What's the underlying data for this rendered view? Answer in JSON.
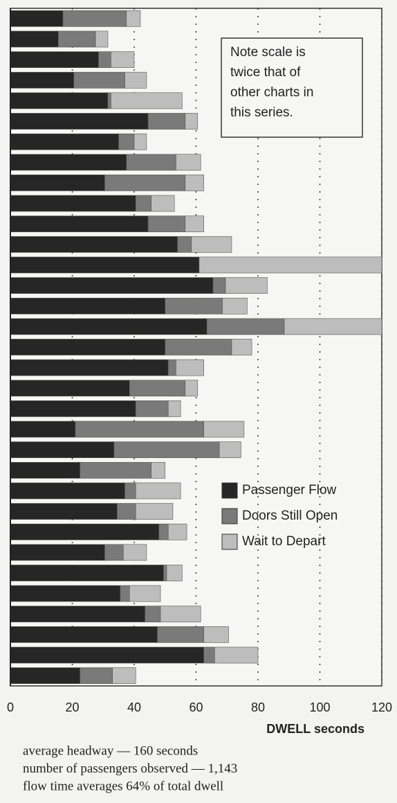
{
  "chart_data": {
    "type": "bar",
    "orientation": "horizontal",
    "stacked": true,
    "categories": [
      null,
      null,
      null,
      null,
      null,
      null,
      null,
      null,
      null,
      null,
      null,
      null,
      null,
      null,
      null,
      null,
      null,
      null,
      null,
      null,
      null,
      null,
      null,
      null,
      null,
      null,
      null,
      null,
      null,
      null,
      null,
      null,
      null
    ],
    "series": [
      {
        "name": "Passenger Flow",
        "color": "#262626",
        "values": [
          17,
          15.5,
          28.5,
          20.5,
          31.5,
          44.5,
          35,
          37.5,
          30.5,
          40.5,
          44.5,
          54,
          61,
          65.5,
          50,
          63.5,
          50,
          51,
          38.5,
          40.5,
          21,
          33.5,
          22.5,
          37,
          34.5,
          48,
          30.5,
          49.5,
          35.5,
          43.5,
          47.5,
          62.5,
          22.5
        ]
      },
      {
        "name": "Doors Still Open",
        "color": "#7a7a7a",
        "values": [
          20.5,
          12,
          4,
          16.5,
          1,
          12,
          5,
          16,
          26,
          5,
          12,
          4.5,
          0,
          4,
          18.5,
          25,
          21.5,
          2.5,
          18,
          10.5,
          41.5,
          34,
          23,
          3.5,
          6,
          3,
          6,
          1,
          3,
          5,
          15,
          3.5,
          10.5
        ]
      },
      {
        "name": "Wait to Depart",
        "color": "#bdbdbd",
        "values": [
          4.5,
          4,
          7.5,
          7,
          23,
          4,
          4,
          8,
          6,
          7.5,
          6,
          13,
          59,
          13.5,
          8,
          31.5,
          6.5,
          9,
          4,
          4,
          13,
          7,
          4.5,
          14.5,
          12,
          6,
          7.5,
          5,
          10,
          13,
          8,
          14,
          7.5
        ]
      }
    ],
    "xlim": [
      0,
      120
    ],
    "xticks": [
      0,
      20,
      40,
      60,
      80,
      100,
      120
    ],
    "xlabel": "DWELL seconds",
    "grid": true,
    "legend": "lower right",
    "note": [
      "Note scale is",
      "twice that of",
      "other charts in",
      "this series."
    ],
    "footnotes": [
      "average headway — 160 seconds",
      "number of passengers observed — 1,143",
      "flow time averages 64% of total dwell"
    ]
  }
}
